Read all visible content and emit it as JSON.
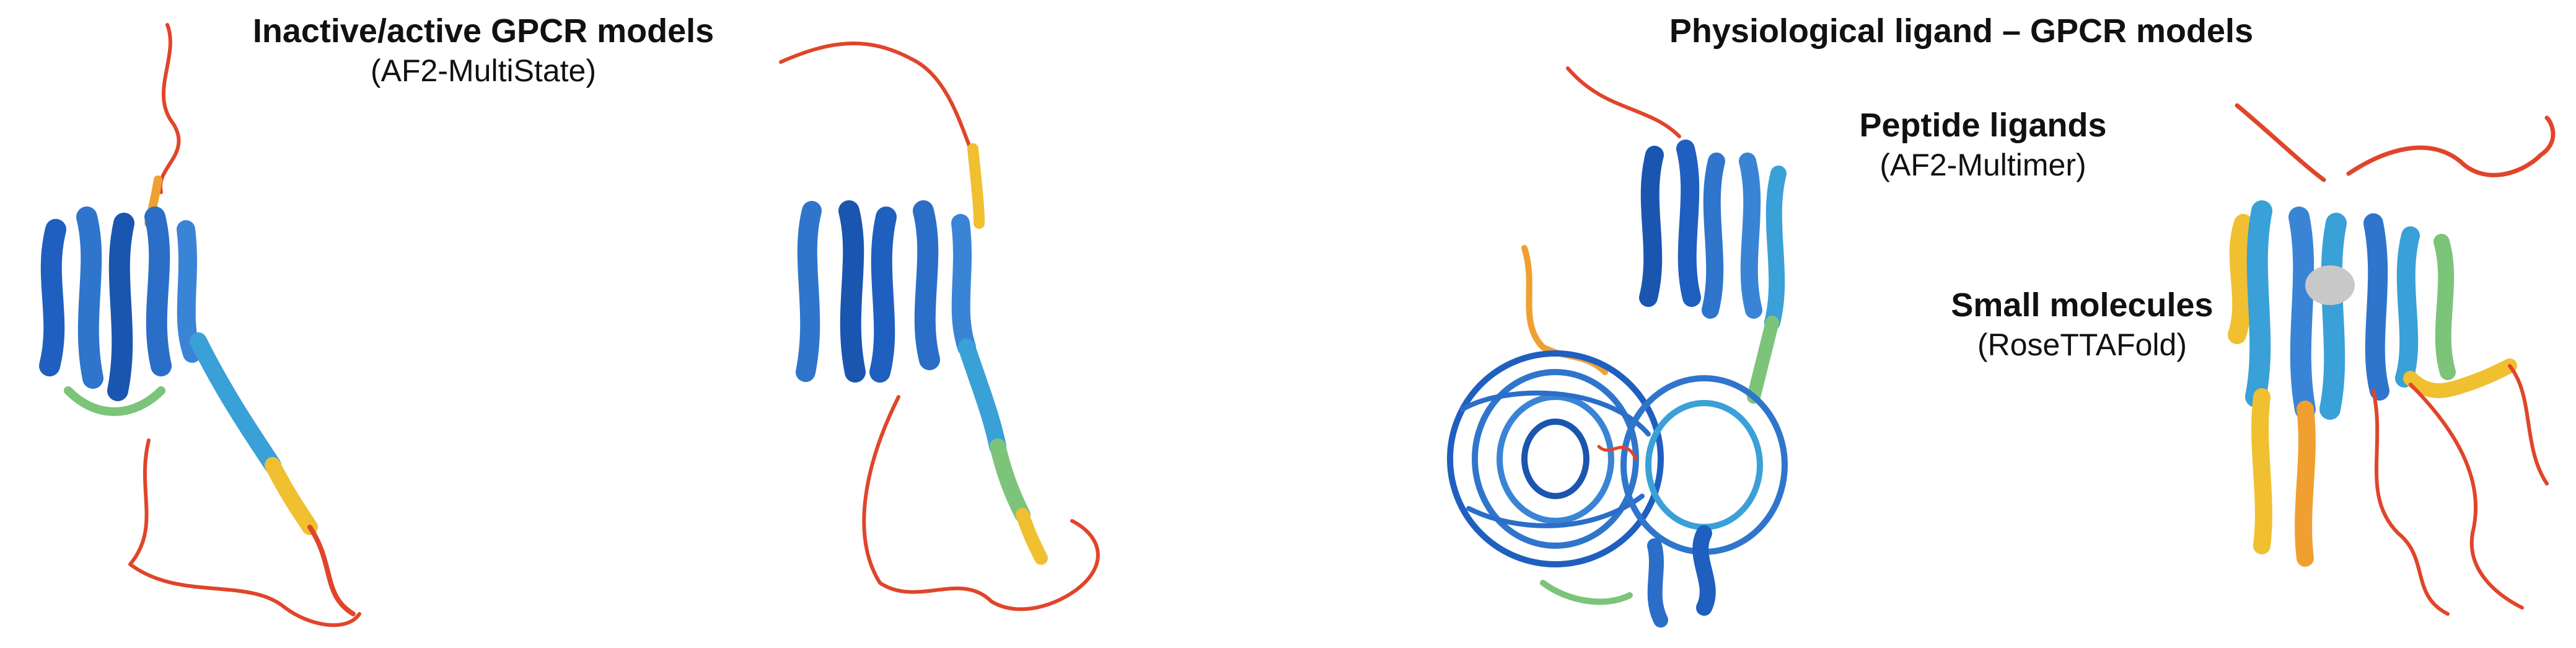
{
  "sections": {
    "left": {
      "title": "Inactive/active GPCR models",
      "subtitle": "(AF2-MultiState)"
    },
    "right": {
      "title": "Physiological ligand – GPCR models",
      "peptide": {
        "title": "Peptide ligands",
        "subtitle": "(AF2-Multimer)"
      },
      "small": {
        "title": "Small molecules",
        "subtitle": "(RoseTTAFold)"
      }
    }
  },
  "structures": [
    {
      "name": "inactive-gpcr-model",
      "icon": "protein-ribbon-structure"
    },
    {
      "name": "active-gpcr-model",
      "icon": "protein-ribbon-structure"
    },
    {
      "name": "peptide-ligand-gpcr-complex",
      "icon": "protein-ribbon-structure"
    },
    {
      "name": "small-molecule-gpcr-complex",
      "icon": "protein-ribbon-structure"
    }
  ],
  "colors": {
    "confident_high": "#1f5fbf",
    "confident": "#3aa0d8",
    "medium": "#7cc47a",
    "low": "#f0c030",
    "very_low": "#e0452a",
    "ligand": "#c8c8c8"
  }
}
